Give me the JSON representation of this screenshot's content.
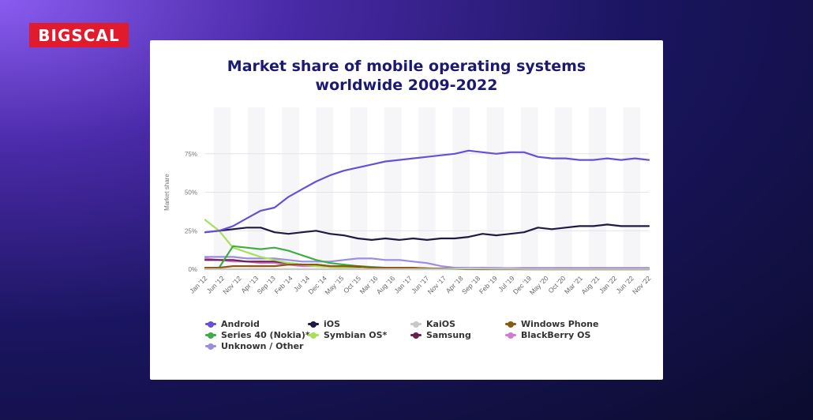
{
  "brand": {
    "logo_text": "BIGSCAL",
    "logo_color": "#e11b2d"
  },
  "chart_data": {
    "type": "line",
    "title_line1": "Market share of mobile operating systems",
    "title_line2": "worldwide 2009-2022",
    "ylabel": "Market share",
    "ylim": [
      0,
      100
    ],
    "yticks": [
      "0%",
      "25%",
      "50%",
      "75%"
    ],
    "x_tick_labels": [
      "Jan '12",
      "Jun '12",
      "Nov '12",
      "Apr '13",
      "Sep '13",
      "Feb '14",
      "Jul '14",
      "Dec '14",
      "May '15",
      "Oct '15",
      "Mar '16",
      "Aug '16",
      "Jan '17",
      "Jun '17",
      "Nov '17",
      "Apr '18",
      "Sep '18",
      "Feb '19",
      "Jul '19",
      "Dec '19",
      "May '20",
      "Oct '20",
      "Mar '21",
      "Aug '21",
      "Jan '22",
      "Jun '22",
      "Nov '22"
    ],
    "series": [
      {
        "name": "Android",
        "color": "#6a4fd6",
        "values": [
          24,
          25,
          28,
          33,
          38,
          40,
          47,
          52,
          57,
          61,
          64,
          66,
          68,
          70,
          71,
          72,
          73,
          74,
          75,
          77,
          76,
          75,
          76,
          76,
          73,
          72,
          72,
          71,
          71,
          72,
          71,
          72,
          71
        ]
      },
      {
        "name": "iOS",
        "color": "#1d1b45",
        "values": [
          24,
          25,
          26,
          27,
          27,
          24,
          23,
          24,
          25,
          23,
          22,
          20,
          19,
          20,
          19,
          20,
          19,
          20,
          20,
          21,
          23,
          22,
          23,
          24,
          27,
          26,
          27,
          28,
          28,
          29,
          28,
          28,
          28
        ]
      },
      {
        "name": "KaiOS",
        "color": "#c8c8c8",
        "values": [
          0,
          0,
          0,
          0,
          0,
          0,
          0,
          0,
          0,
          0,
          0,
          0,
          0,
          0,
          0,
          0,
          0,
          0,
          0.3,
          0.5,
          0.4,
          0.3,
          0.3,
          0.2,
          0.2,
          0.2,
          0.2,
          0.2,
          0.2,
          0.2,
          0.2,
          0.2,
          0.2
        ]
      },
      {
        "name": "Windows Phone",
        "color": "#8a5a14",
        "values": [
          1,
          1,
          2,
          2,
          2,
          2,
          3,
          3,
          3,
          2,
          2,
          2,
          1,
          1,
          1,
          1,
          0.5,
          0.4,
          0.3,
          0.2,
          0.1,
          0.1,
          0.1,
          0,
          0,
          0,
          0,
          0,
          0,
          0,
          0,
          0,
          0
        ]
      },
      {
        "name": "Series 40 (Nokia)*",
        "color": "#3fad46",
        "values": [
          0,
          1,
          15,
          14,
          13,
          14,
          12,
          9,
          6,
          4,
          3,
          2,
          1.5,
          1,
          1,
          0.8,
          0.5,
          0.3,
          0.2,
          0.1,
          0,
          0,
          0,
          0,
          0,
          0,
          0,
          0,
          0,
          0,
          0,
          0,
          0
        ]
      },
      {
        "name": "Symbian OS*",
        "color": "#a9e05a",
        "values": [
          32,
          25,
          14,
          11,
          8,
          6,
          4,
          3,
          2,
          1.5,
          1,
          0.5,
          0.3,
          0.2,
          0.1,
          0,
          0,
          0,
          0,
          0,
          0,
          0,
          0,
          0,
          0,
          0,
          0,
          0,
          0,
          0,
          0,
          0,
          0
        ]
      },
      {
        "name": "Samsung",
        "color": "#6a1f4f",
        "values": [
          6,
          6,
          6,
          5,
          5,
          5,
          4,
          3,
          3,
          2,
          2,
          1.5,
          1,
          1,
          0.8,
          0.6,
          0.5,
          0.4,
          0.3,
          0.3,
          0.3,
          0.3,
          0.3,
          0.3,
          0.3,
          0.3,
          0.3,
          0.3,
          0.3,
          0.3,
          0.3,
          0.3,
          0.3
        ]
      },
      {
        "name": "BlackBerry OS",
        "color": "#d47ad2",
        "values": [
          7,
          6,
          5,
          5,
          4,
          4,
          3,
          2,
          2,
          1.5,
          1,
          0.8,
          0.5,
          0.4,
          0.3,
          0.2,
          0.1,
          0.1,
          0.1,
          0,
          0,
          0,
          0,
          0,
          0,
          0,
          0,
          0,
          0,
          0,
          0,
          0,
          0
        ]
      },
      {
        "name": "Unknown / Other",
        "color": "#9b8ee0",
        "values": [
          8,
          8,
          8,
          7,
          7,
          7,
          6,
          5,
          5,
          5,
          6,
          7,
          7,
          6,
          6,
          5,
          4,
          2,
          1,
          1,
          1,
          0.8,
          0.7,
          0.8,
          0.8,
          0.8,
          0.8,
          0.8,
          0.8,
          0.8,
          0.8,
          0.8,
          0.8
        ]
      }
    ],
    "legend_placement": "bottom",
    "grid": true
  }
}
